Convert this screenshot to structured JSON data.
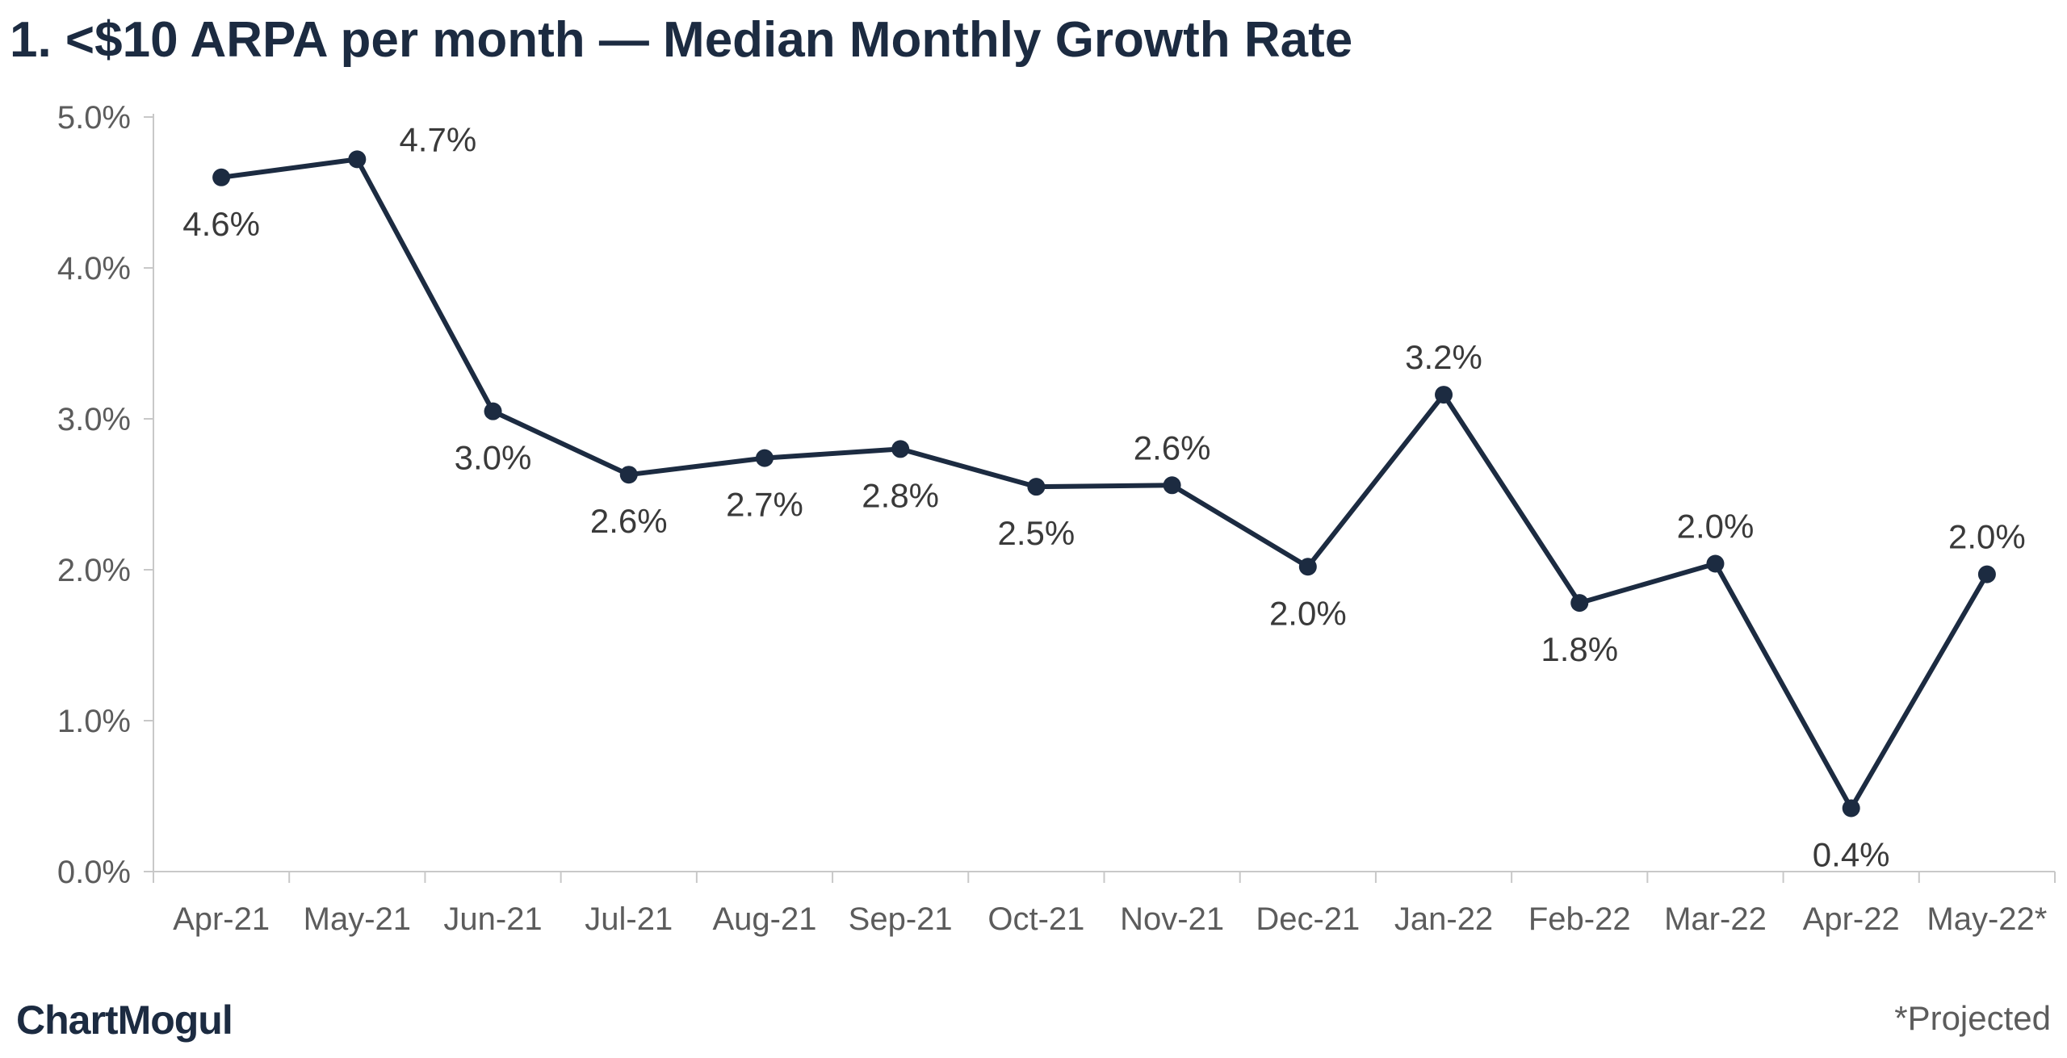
{
  "chart_data": {
    "type": "line",
    "title": "1. <$10 ARPA per month — Median Monthly Growth Rate",
    "xlabel": "",
    "ylabel": "",
    "categories": [
      "Apr-21",
      "May-21",
      "Jun-21",
      "Jul-21",
      "Aug-21",
      "Sep-21",
      "Oct-21",
      "Nov-21",
      "Dec-21",
      "Jan-22",
      "Feb-22",
      "Mar-22",
      "Apr-22",
      "May-22*"
    ],
    "values": [
      4.6,
      4.72,
      3.05,
      2.63,
      2.74,
      2.8,
      2.55,
      2.56,
      2.02,
      3.16,
      1.78,
      2.04,
      0.42,
      1.97
    ],
    "data_labels": [
      "4.6%",
      "4.7%",
      "3.0%",
      "2.6%",
      "2.7%",
      "2.8%",
      "2.5%",
      "2.6%",
      "2.0%",
      "3.2%",
      "1.8%",
      "2.0%",
      "0.4%",
      "2.0%"
    ],
    "label_positions": [
      "below",
      "above",
      "below",
      "below",
      "below",
      "below",
      "below",
      "above",
      "below",
      "above",
      "below",
      "above",
      "below",
      "above"
    ],
    "ylim": [
      0,
      5
    ],
    "yticks": [
      "0.0%",
      "1.0%",
      "2.0%",
      "3.0%",
      "4.0%",
      "5.0%"
    ],
    "grid": false,
    "legend": "none",
    "line_color": "#1c2b41",
    "axis_color": "#c8c8c8"
  },
  "brand": {
    "name": "ChartMogul"
  },
  "footnote": "*Projected"
}
